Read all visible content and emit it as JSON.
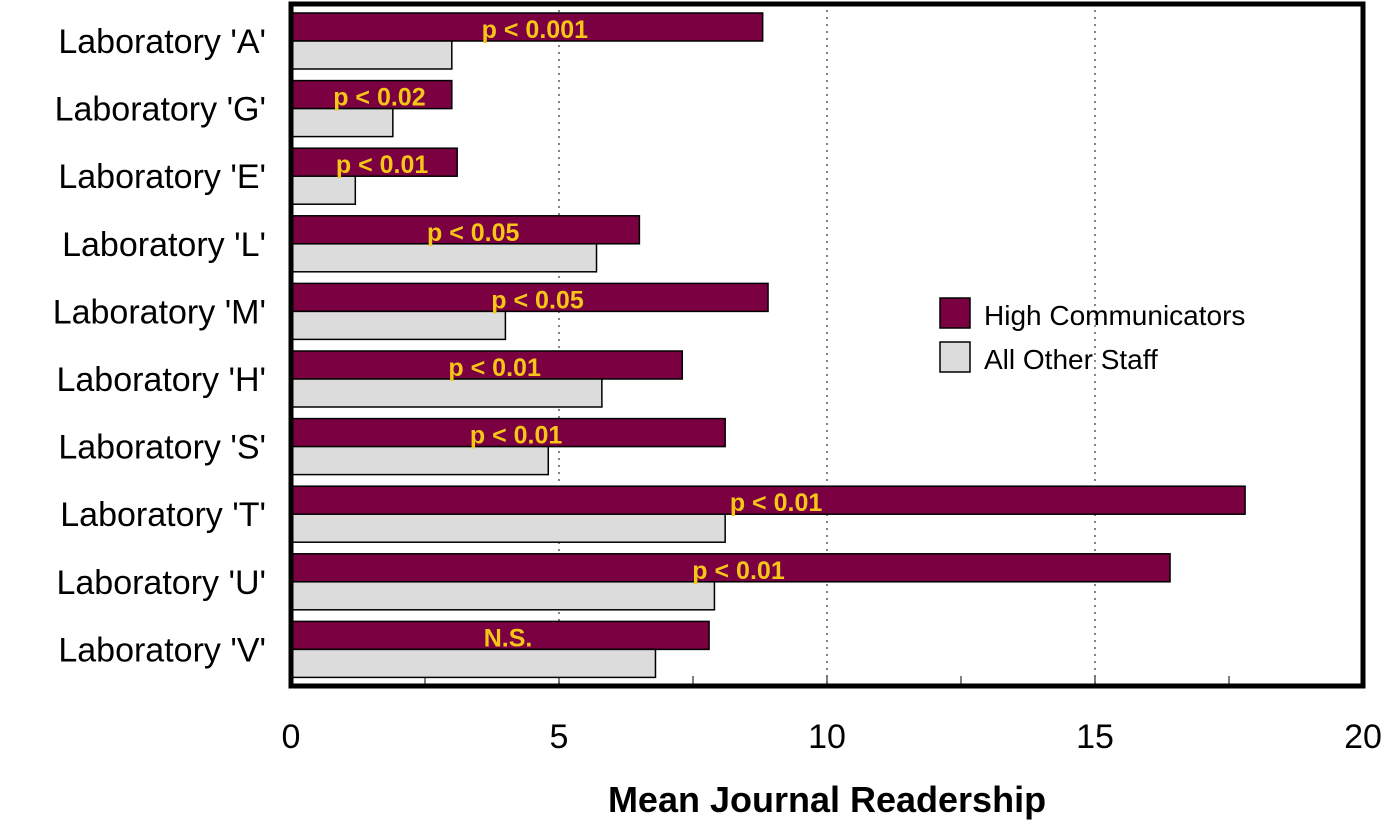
{
  "colors": {
    "high": "#7b0041",
    "other": "#dcdcdc",
    "annotation": "#f5c518",
    "frame": "#000000",
    "grid": "#333333"
  },
  "chart_data": {
    "type": "bar",
    "orientation": "horizontal",
    "title": "",
    "xlabel": "Mean Journal Readership",
    "ylabel": "",
    "xlim": [
      0,
      20
    ],
    "xticks": [
      0,
      5,
      10,
      15,
      20
    ],
    "grid": "vertical dotted at 5, 10, 15",
    "legend_position": "right-middle",
    "categories": [
      "Laboratory 'A'",
      "Laboratory 'G'",
      "Laboratory 'E'",
      "Laboratory 'L'",
      "Laboratory 'M'",
      "Laboratory 'H'",
      "Laboratory 'S'",
      "Laboratory 'T'",
      "Laboratory 'U'",
      "Laboratory 'V'"
    ],
    "series": [
      {
        "name": "High Communicators",
        "values": [
          8.8,
          3.0,
          3.1,
          6.5,
          8.9,
          7.3,
          8.1,
          17.8,
          16.4,
          7.8
        ]
      },
      {
        "name": "All Other Staff",
        "values": [
          3.0,
          1.9,
          1.2,
          5.7,
          4.0,
          5.8,
          4.8,
          8.1,
          7.9,
          6.8
        ]
      }
    ],
    "annotations": [
      "p < 0.001",
      "p < 0.02",
      "p < 0.01",
      "p < 0.05",
      "p < 0.05",
      "p < 0.01",
      "p < 0.01",
      "p < 0.01",
      "p < 0.01",
      "N.S."
    ]
  }
}
